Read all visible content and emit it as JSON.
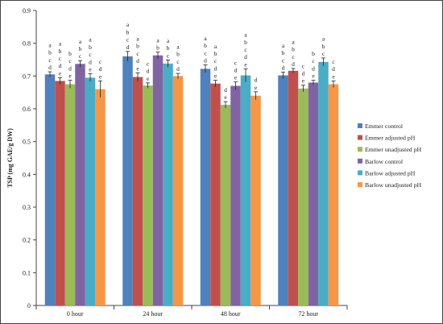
{
  "chart_data": {
    "type": "bar",
    "ylabel": "TSP (mg GAE/g DW)",
    "xlabel": "",
    "ylim": [
      0,
      0.9
    ],
    "yticks": [
      "0",
      "0.1",
      "0.2",
      "0.3",
      "0.4",
      "0.5",
      "0.6",
      "0.7",
      "0.8",
      "0.9"
    ],
    "ytick_values": [
      0,
      0.1,
      0.2,
      0.3,
      0.4,
      0.5,
      0.6,
      0.7,
      0.8,
      0.9
    ],
    "categories": [
      "0 hour",
      "24 hour",
      "48 hour",
      "72 hour"
    ],
    "legend_position": "right",
    "grid": false,
    "series": [
      {
        "name": "Emmer control",
        "color": "#4f81bd",
        "values": [
          0.705,
          0.76,
          0.722,
          0.702
        ],
        "errors": [
          0.008,
          0.015,
          0.012,
          0.01
        ],
        "labels": [
          [
            "a",
            "b",
            "c",
            "d"
          ],
          [
            "a",
            "b",
            "c",
            "d"
          ],
          [
            "a",
            "b",
            "c",
            "d"
          ],
          [
            "a",
            "b",
            "c",
            "d"
          ]
        ]
      },
      {
        "name": "Emmer adjusted pH",
        "color": "#c0504d",
        "values": [
          0.685,
          0.697,
          0.677,
          0.716
        ],
        "errors": [
          0.01,
          0.013,
          0.01,
          0.007
        ],
        "labels": [
          [
            "a",
            "b",
            "c",
            "d",
            "e"
          ],
          [
            "a",
            "b",
            "c",
            "d",
            "e"
          ],
          [
            "a",
            "b",
            "c",
            "d",
            "e"
          ],
          [
            "a",
            "b",
            "c",
            "d"
          ]
        ]
      },
      {
        "name": "Emmer unadjusted pH",
        "color": "#9bbb59",
        "values": [
          0.675,
          0.671,
          0.612,
          0.662
        ],
        "errors": [
          0.012,
          0.008,
          0.01,
          0.01
        ],
        "labels": [
          [
            "b",
            "c",
            "d",
            "e"
          ],
          [
            "c",
            "d",
            "e"
          ],
          [
            "d",
            "e"
          ],
          [
            "c",
            "d",
            "e"
          ]
        ]
      },
      {
        "name": "Barlow control",
        "color": "#8064a2",
        "values": [
          0.737,
          0.763,
          0.67,
          0.68
        ],
        "errors": [
          0.01,
          0.01,
          0.012,
          0.007
        ],
        "labels": [
          [
            "a",
            "b",
            "c"
          ],
          [
            "a",
            "b"
          ],
          [
            "c",
            "d",
            "e"
          ],
          [
            "b",
            "c",
            "d",
            "e"
          ]
        ]
      },
      {
        "name": "Barlow adjusted pH",
        "color": "#4bacc6",
        "values": [
          0.695,
          0.738,
          0.702,
          0.743
        ],
        "errors": [
          0.012,
          0.011,
          0.02,
          0.012
        ],
        "labels": [
          [
            "a",
            "b",
            "c",
            "d",
            "e"
          ],
          [
            "a",
            "b",
            "c"
          ],
          [
            "a",
            "b",
            "c",
            "d",
            "e"
          ],
          [
            "a",
            "b",
            "c"
          ]
        ]
      },
      {
        "name": "Barlow unadjusted pH",
        "color": "#f79646",
        "values": [
          0.66,
          0.7,
          0.64,
          0.675
        ],
        "errors": [
          0.025,
          0.008,
          0.012,
          0.01
        ],
        "labels": [
          [
            "c",
            "d",
            "e"
          ],
          [
            "a",
            "b",
            "c",
            "d"
          ],
          [
            "d",
            "e"
          ],
          [
            "c",
            "d",
            "e"
          ]
        ]
      }
    ]
  }
}
